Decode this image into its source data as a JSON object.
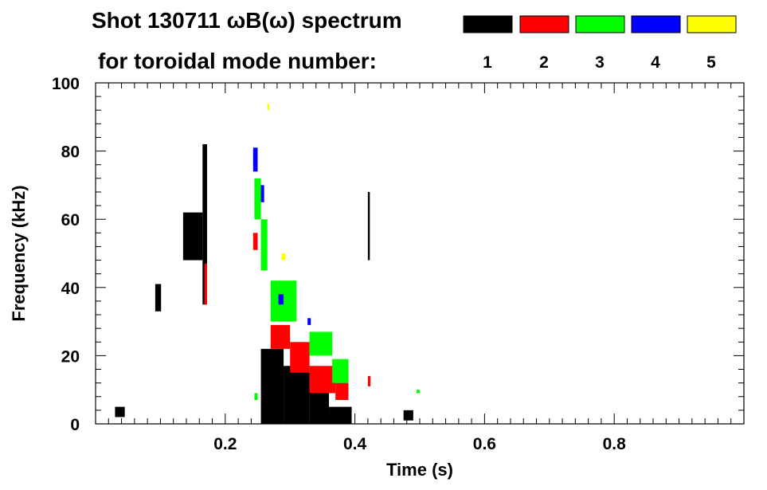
{
  "chart_data": {
    "type": "heatmap",
    "title_line1": "Shot 130711 ωB(ω) spectrum",
    "title_line2": "for toroidal mode number:",
    "xlabel": "Time (s)",
    "ylabel": "Frequency (kHz)",
    "xlim": [
      0.0,
      1.0
    ],
    "ylim": [
      0,
      100
    ],
    "x_ticks": [
      {
        "value": 0.2,
        "label": "0.2"
      },
      {
        "value": 0.4,
        "label": "0.4"
      },
      {
        "value": 0.6,
        "label": "0.6"
      },
      {
        "value": 0.8,
        "label": "0.8"
      }
    ],
    "y_ticks": [
      {
        "value": 0,
        "label": "0"
      },
      {
        "value": 20,
        "label": "20"
      },
      {
        "value": 40,
        "label": "40"
      },
      {
        "value": 60,
        "label": "60"
      },
      {
        "value": 80,
        "label": "80"
      },
      {
        "value": 100,
        "label": "100"
      }
    ],
    "legend": [
      {
        "mode": "1",
        "color": "#000000"
      },
      {
        "mode": "2",
        "color": "#ff0000"
      },
      {
        "mode": "3",
        "color": "#00ff00"
      },
      {
        "mode": "4",
        "color": "#0000ff"
      },
      {
        "mode": "5",
        "color": "#ffff00"
      }
    ],
    "series": [
      {
        "mode": "1",
        "color": "#000000",
        "regions": [
          {
            "t": [
              0.255,
              0.29
            ],
            "f": [
              0,
              22
            ]
          },
          {
            "t": [
              0.29,
              0.33
            ],
            "f": [
              0,
              17
            ]
          },
          {
            "t": [
              0.33,
              0.36
            ],
            "f": [
              0,
              10
            ]
          },
          {
            "t": [
              0.36,
              0.395
            ],
            "f": [
              0,
              5
            ]
          },
          {
            "t": [
              0.135,
              0.165
            ],
            "f": [
              48,
              62
            ]
          },
          {
            "t": [
              0.165,
              0.172
            ],
            "f": [
              35,
              82
            ]
          },
          {
            "t": [
              0.092,
              0.101
            ],
            "f": [
              33,
              41
            ]
          },
          {
            "t": [
              0.03,
              0.045
            ],
            "f": [
              2,
              5
            ]
          },
          {
            "t": [
              0.42,
              0.423
            ],
            "f": [
              48,
              68
            ]
          },
          {
            "t": [
              0.475,
              0.49
            ],
            "f": [
              1,
              4
            ]
          }
        ]
      },
      {
        "mode": "2",
        "color": "#ff0000",
        "regions": [
          {
            "t": [
              0.27,
              0.3
            ],
            "f": [
              22,
              29
            ]
          },
          {
            "t": [
              0.3,
              0.33
            ],
            "f": [
              15,
              24
            ]
          },
          {
            "t": [
              0.33,
              0.37
            ],
            "f": [
              9,
              17
            ]
          },
          {
            "t": [
              0.37,
              0.39
            ],
            "f": [
              7,
              12
            ]
          },
          {
            "t": [
              0.243,
              0.25
            ],
            "f": [
              51,
              56
            ]
          },
          {
            "t": [
              0.168,
              0.172
            ],
            "f": [
              35,
              47
            ]
          },
          {
            "t": [
              0.42,
              0.424
            ],
            "f": [
              11,
              14
            ]
          }
        ]
      },
      {
        "mode": "3",
        "color": "#00ff00",
        "regions": [
          {
            "t": [
              0.245,
              0.255
            ],
            "f": [
              60,
              72
            ]
          },
          {
            "t": [
              0.255,
              0.265
            ],
            "f": [
              45,
              60
            ]
          },
          {
            "t": [
              0.27,
              0.31
            ],
            "f": [
              30,
              42
            ]
          },
          {
            "t": [
              0.33,
              0.365
            ],
            "f": [
              20,
              27
            ]
          },
          {
            "t": [
              0.365,
              0.39
            ],
            "f": [
              12,
              19
            ]
          },
          {
            "t": [
              0.245,
              0.25
            ],
            "f": [
              7,
              9
            ]
          },
          {
            "t": [
              0.495,
              0.5
            ],
            "f": [
              9,
              10
            ]
          }
        ]
      },
      {
        "mode": "4",
        "color": "#0000ff",
        "regions": [
          {
            "t": [
              0.243,
              0.25
            ],
            "f": [
              74,
              81
            ]
          },
          {
            "t": [
              0.255,
              0.26
            ],
            "f": [
              65,
              70
            ]
          },
          {
            "t": [
              0.282,
              0.29
            ],
            "f": [
              35,
              38
            ]
          },
          {
            "t": [
              0.327,
              0.332
            ],
            "f": [
              29,
              31
            ]
          }
        ]
      },
      {
        "mode": "5",
        "color": "#ffff00",
        "regions": [
          {
            "t": [
              0.287,
              0.293
            ],
            "f": [
              48,
              50
            ]
          },
          {
            "t": [
              0.265,
              0.268
            ],
            "f": [
              92,
              94
            ]
          }
        ]
      }
    ]
  }
}
